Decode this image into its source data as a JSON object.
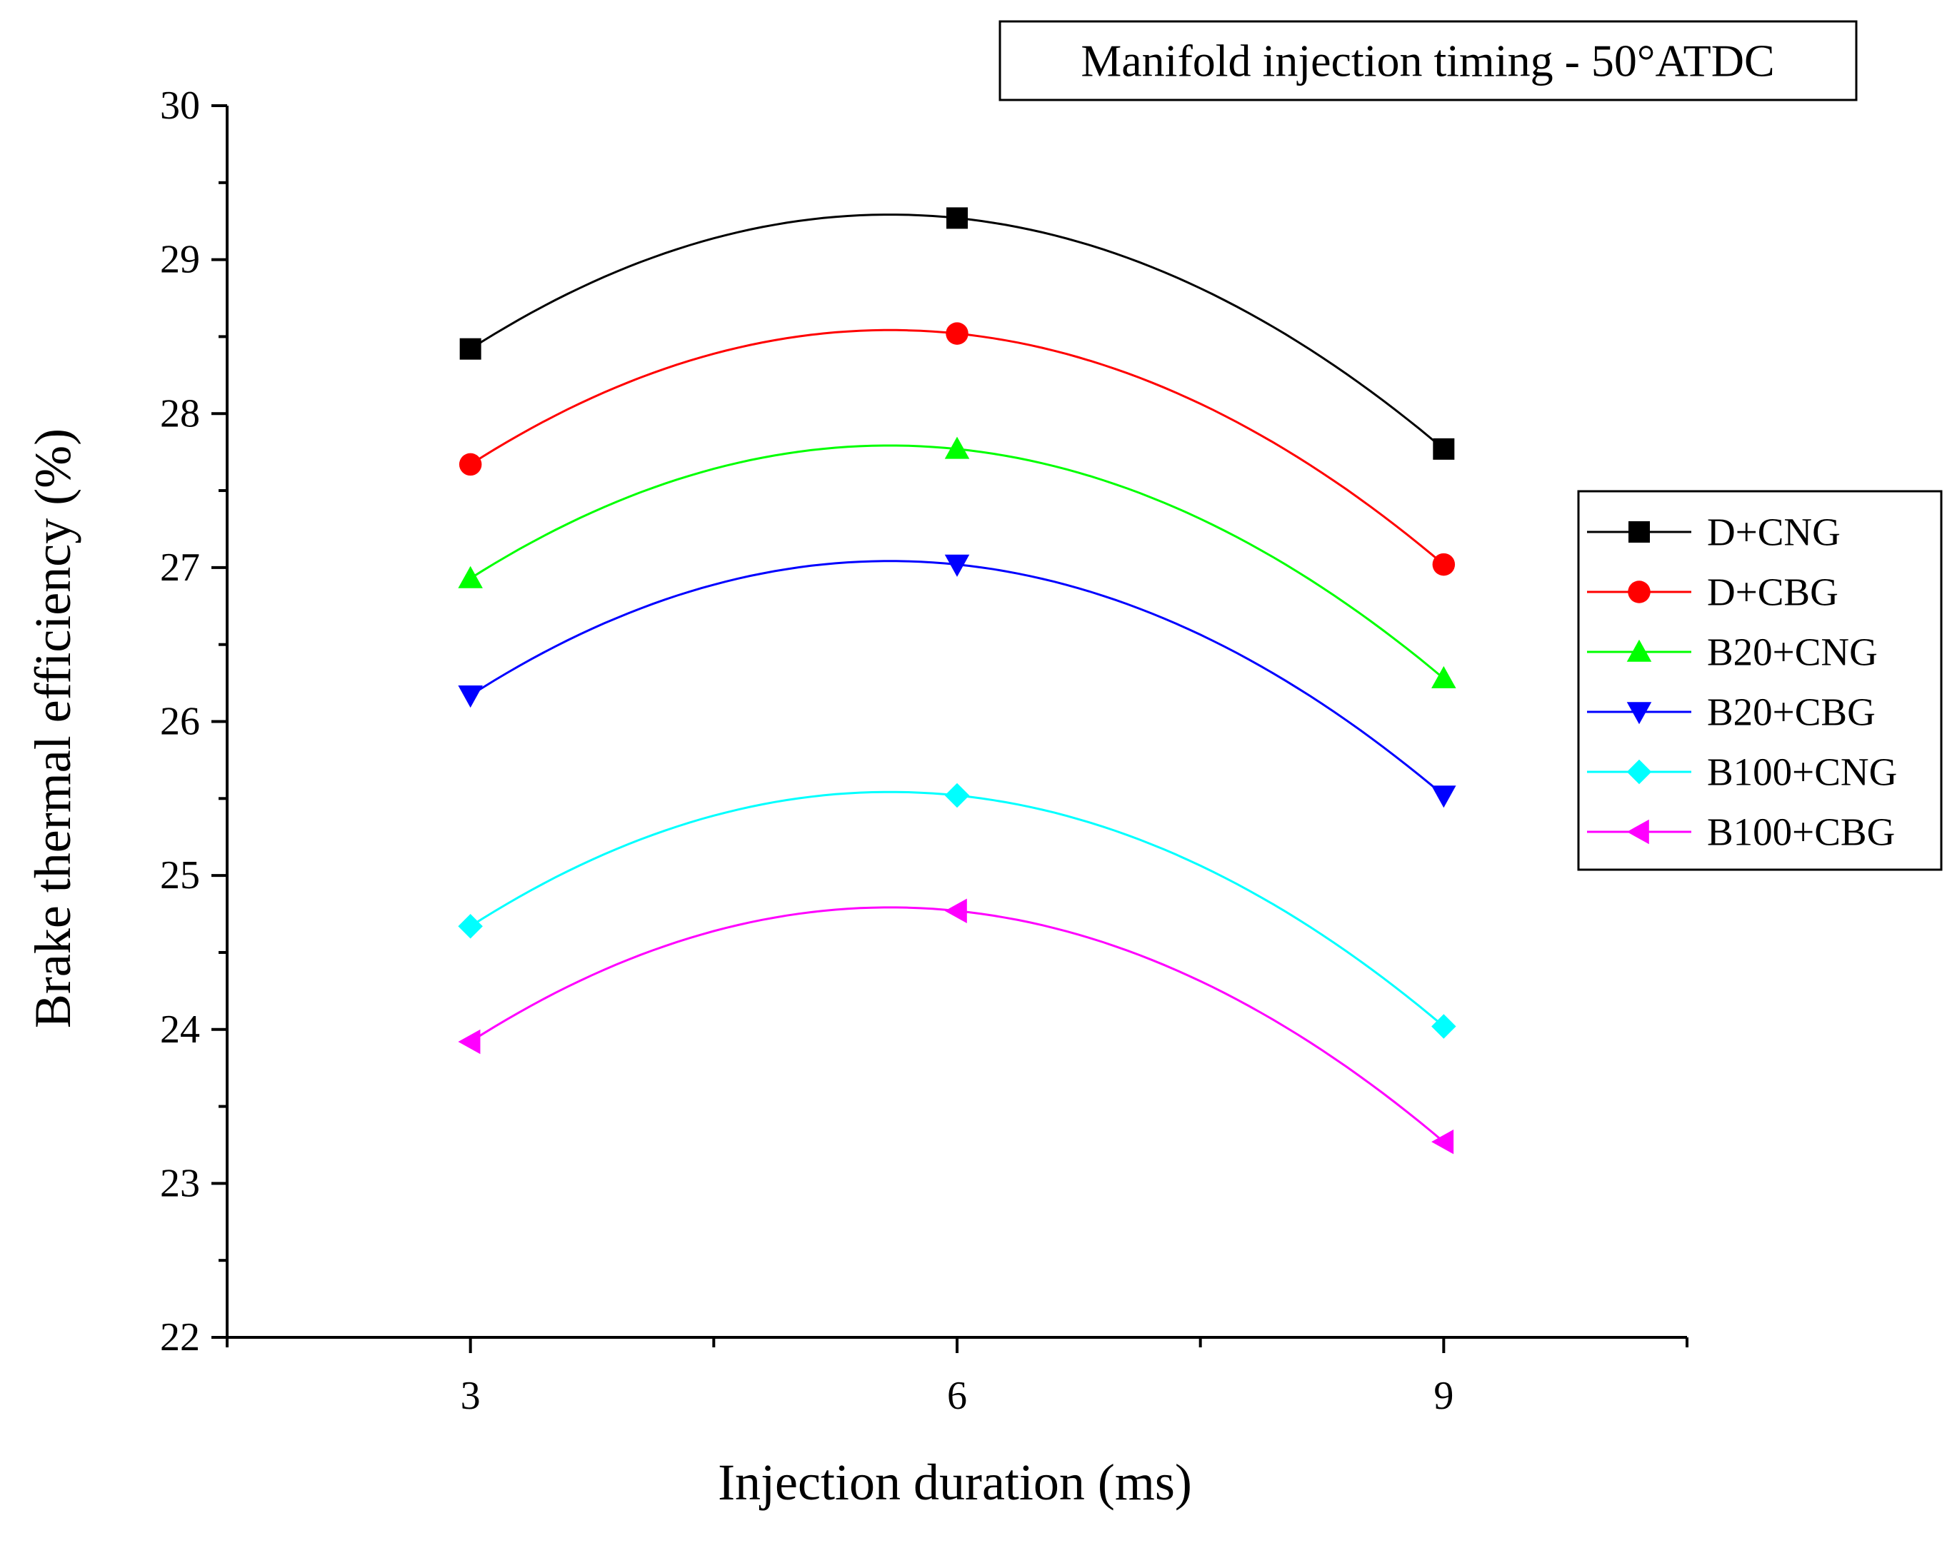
{
  "chart_data": {
    "type": "line",
    "annotation": "Manifold injection timing - 50°ATDC",
    "xlabel": "Injection duration (ms)",
    "ylabel": "Brake thermal efficiency (%)",
    "x": [
      3,
      6,
      9
    ],
    "xlim": [
      1.5,
      10.5
    ],
    "ylim": [
      22,
      30
    ],
    "xticks": [
      3,
      6,
      9
    ],
    "xtick_labels": [
      "3",
      "6",
      "9"
    ],
    "x_minor_ticks": [
      1.5,
      4.5,
      7.5,
      10.5
    ],
    "yticks": [
      22,
      23,
      24,
      25,
      26,
      27,
      28,
      29,
      30
    ],
    "ytick_labels": [
      "22",
      "23",
      "24",
      "25",
      "26",
      "27",
      "28",
      "29",
      "30"
    ],
    "y_minor_step": 0.5,
    "grid": false,
    "legend_position": "right",
    "series": [
      {
        "name": "D+CNG",
        "values": [
          28.42,
          29.27,
          27.77
        ],
        "color": "#000000",
        "marker": "square"
      },
      {
        "name": "D+CBG",
        "values": [
          27.67,
          28.52,
          27.02
        ],
        "color": "#ff0000",
        "marker": "circle"
      },
      {
        "name": "B20+CNG",
        "values": [
          26.93,
          27.77,
          26.28
        ],
        "color": "#00ff00",
        "marker": "triangle-up"
      },
      {
        "name": "B20+CBG",
        "values": [
          26.17,
          27.02,
          25.52
        ],
        "color": "#0000ff",
        "marker": "triangle-down"
      },
      {
        "name": "B100+CNG",
        "values": [
          24.67,
          25.52,
          24.02
        ],
        "color": "#00ffff",
        "marker": "diamond"
      },
      {
        "name": "B100+CBG",
        "values": [
          23.92,
          24.77,
          23.27
        ],
        "color": "#ff00ff",
        "marker": "triangle-left"
      }
    ]
  }
}
